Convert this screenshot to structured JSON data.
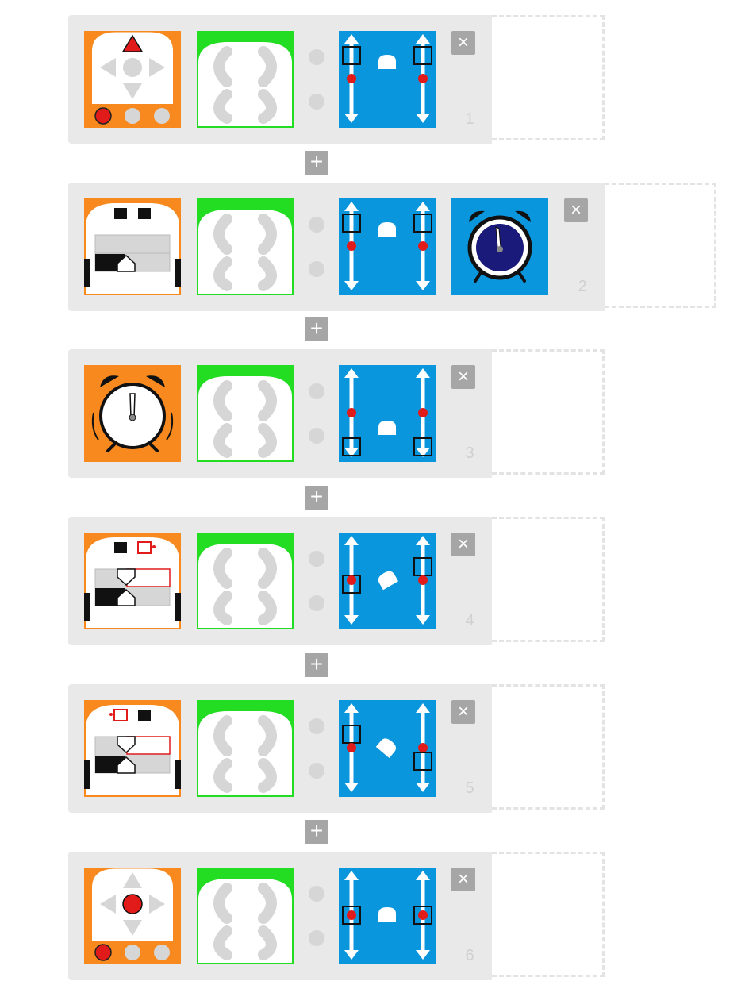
{
  "rows": [
    {
      "close_label": "×",
      "number": "1",
      "event_icon": "up-arrow-button-icon",
      "action_icon": "motors-forward-icon"
    },
    {
      "close_label": "×",
      "number": "2",
      "event_icon": "line-sensor-icon",
      "action_icon": "motors-forward-icon",
      "extra_icon": "alarm-clock-icon"
    },
    {
      "close_label": "×",
      "number": "3",
      "event_icon": "timer-alarm-icon",
      "action_icon": "motors-backward-icon"
    },
    {
      "close_label": "×",
      "number": "4",
      "event_icon": "line-sensor-left-icon",
      "action_icon": "turn-right-icon"
    },
    {
      "close_label": "×",
      "number": "5",
      "event_icon": "line-sensor-right-icon",
      "action_icon": "turn-left-icon"
    },
    {
      "close_label": "×",
      "number": "6",
      "event_icon": "center-button-icon",
      "action_icon": "motors-stop-icon"
    }
  ],
  "add_label": "+",
  "colors": {
    "event": "#f7891f",
    "action": "#0a96dc",
    "led": "#22dd22",
    "red": "#e11a1a",
    "row_bg": "#e9e9e9",
    "button": "#a6a6a6"
  }
}
